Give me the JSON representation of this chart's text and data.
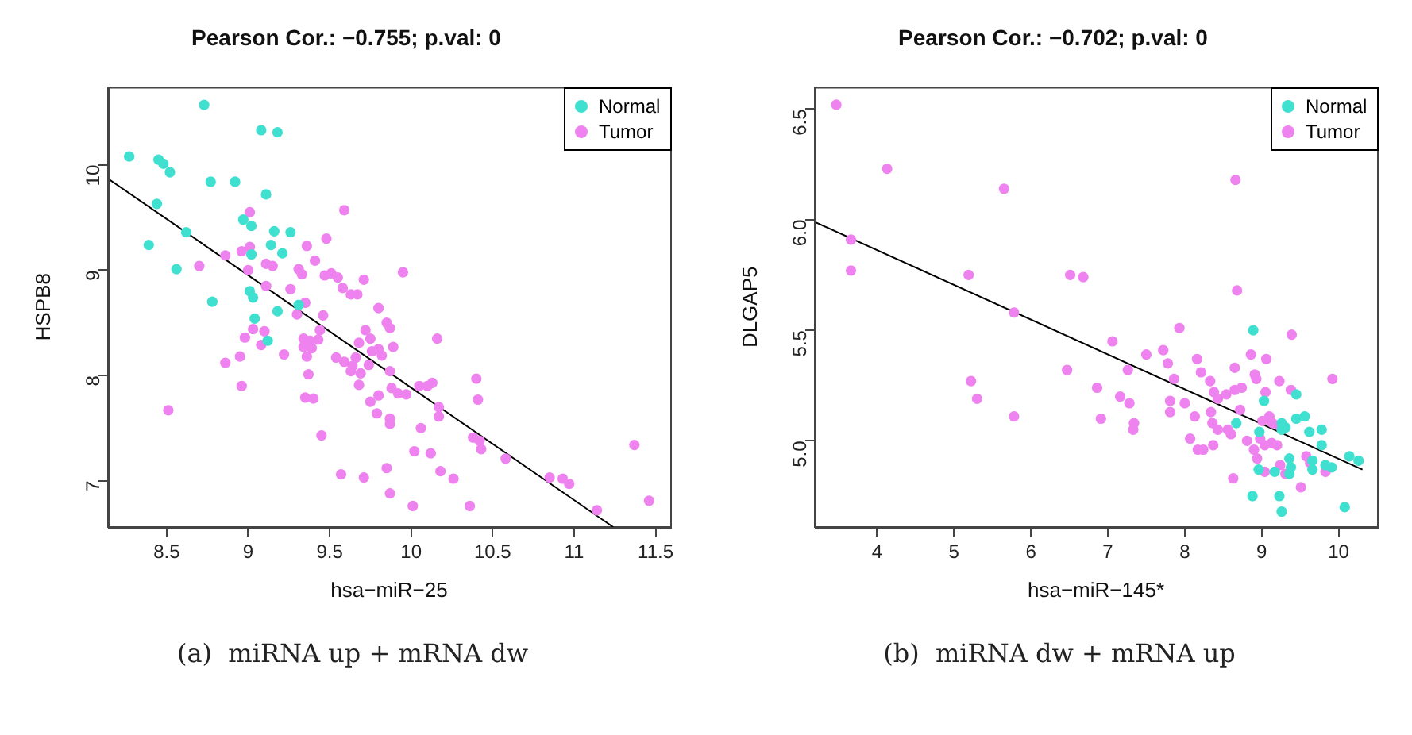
{
  "chart_data": [
    {
      "type": "scatter",
      "title": "Pearson Cor.: −0.755; p.val: 0",
      "xlabel": "hsa−miR−25",
      "ylabel": "HSPB8",
      "xlim": [
        8.14,
        11.59
      ],
      "xticks": [
        8.5,
        9,
        9.5,
        10,
        10.5,
        11,
        11.5
      ],
      "ylim": [
        6.56,
        10.74
      ],
      "yticks": [
        7,
        8,
        9,
        10
      ],
      "grid": false,
      "legend": "top right",
      "annotations": [
        "(a)  miRNA up + mRNA dw"
      ],
      "series": [
        {
          "name": "Normal",
          "color": "#40e0d0",
          "marker": "circle",
          "x": [
            8.27,
            8.45,
            8.48,
            8.52,
            8.73,
            9.08,
            9.18,
            8.77,
            8.92,
            9.11,
            8.44,
            8.39,
            8.62,
            8.56,
            8.97,
            9.02,
            9.16,
            9.26,
            9.14,
            9.21,
            9.02,
            8.78,
            9.01,
            9.03,
            9.31,
            9.18,
            9.04,
            9.12
          ],
          "values": [
            10.08,
            10.05,
            10.01,
            9.93,
            10.57,
            10.33,
            10.31,
            9.84,
            9.84,
            9.72,
            9.63,
            9.24,
            9.36,
            9.01,
            9.48,
            9.42,
            9.37,
            9.36,
            9.24,
            9.16,
            9.15,
            8.7,
            8.8,
            8.74,
            8.67,
            8.61,
            8.54,
            8.33
          ]
        },
        {
          "name": "Tumor",
          "color": "#ee82ee",
          "marker": "circle",
          "x": [
            9.01,
            9.59,
            9.48,
            9.36,
            8.96,
            9.01,
            8.86,
            8.7,
            9.11,
            9.15,
            9.41,
            9.0,
            9.31,
            9.33,
            9.47,
            9.51,
            9.55,
            9.71,
            9.95,
            9.11,
            9.26,
            9.58,
            9.63,
            9.67,
            9.35,
            9.3,
            9.46,
            9.8,
            9.85,
            9.87,
            9.72,
            9.75,
            9.68,
            9.03,
            9.1,
            8.98,
            9.08,
            9.34,
            9.44,
            9.43,
            9.38,
            9.34,
            9.39,
            9.22,
            9.36,
            8.95,
            8.86,
            9.54,
            9.59,
            9.64,
            9.66,
            9.76,
            9.8,
            9.82,
            9.89,
            9.74,
            9.63,
            9.69,
            9.87,
            9.37,
            8.96,
            9.68,
            9.88,
            9.92,
            9.97,
            9.8,
            9.75,
            9.35,
            9.4,
            9.79,
            9.87,
            9.87,
            8.51,
            9.45,
            9.57,
            9.71,
            9.85,
            9.87,
            10.01,
            10.02,
            10.16,
            10.05,
            10.1,
            10.13,
            10.17,
            10.17,
            10.4,
            10.41,
            10.06,
            10.38,
            10.42,
            10.43,
            10.12,
            10.18,
            10.26,
            10.58,
            10.85,
            10.93,
            10.97,
            11.37,
            11.46,
            11.14,
            10.36
          ],
          "values": [
            9.55,
            9.57,
            9.3,
            9.23,
            9.18,
            9.22,
            9.14,
            9.04,
            9.06,
            9.04,
            9.09,
            9.0,
            9.01,
            8.96,
            8.95,
            8.97,
            8.93,
            8.91,
            8.98,
            8.85,
            8.82,
            8.83,
            8.77,
            8.77,
            8.69,
            8.58,
            8.57,
            8.64,
            8.5,
            8.45,
            8.43,
            8.35,
            8.31,
            8.44,
            8.42,
            8.36,
            8.29,
            8.35,
            8.43,
            8.34,
            8.33,
            8.27,
            8.26,
            8.2,
            8.18,
            8.18,
            8.12,
            8.17,
            8.13,
            8.09,
            8.17,
            8.23,
            8.25,
            8.19,
            8.27,
            8.1,
            8.04,
            8.02,
            8.04,
            8.01,
            7.9,
            7.91,
            7.88,
            7.83,
            7.82,
            7.81,
            7.75,
            7.79,
            7.78,
            7.64,
            7.59,
            7.54,
            7.67,
            7.43,
            7.06,
            7.03,
            7.12,
            6.88,
            6.76,
            7.28,
            8.35,
            7.9,
            7.9,
            7.93,
            7.7,
            7.61,
            7.97,
            7.77,
            7.5,
            7.41,
            7.38,
            7.3,
            7.26,
            7.09,
            7.02,
            7.21,
            7.03,
            7.02,
            6.97,
            7.34,
            6.81,
            6.72,
            6.76
          ]
        },
        {
          "type": "line",
          "color": "#000000",
          "x": [
            8.14,
            11.24
          ],
          "values": [
            9.87,
            6.56
          ]
        }
      ]
    },
    {
      "type": "scatter",
      "title": "Pearson Cor.: −0.702; p.val: 0",
      "xlabel": "hsa−miR−145*",
      "ylabel": "DLGAP5",
      "xlim": [
        3.19,
        10.5
      ],
      "xticks": [
        4,
        5,
        6,
        7,
        8,
        9,
        10
      ],
      "ylim": [
        4.61,
        6.6
      ],
      "yticks": [
        {
          "value": 5,
          "label": "5.0"
        },
        5.5,
        {
          "value": 6,
          "label": "6.0"
        },
        6.5
      ],
      "grid": false,
      "legend": "top right",
      "annotations": [
        "(b)  miRNA dw + mRNA up"
      ],
      "series": [
        {
          "name": "Normal",
          "color": "#40e0d0",
          "marker": "circle",
          "x": [
            8.89,
            9.03,
            9.45,
            8.67,
            8.97,
            9.26,
            9.31,
            9.45,
            9.56,
            9.26,
            9.78,
            9.62,
            9.78,
            10.14,
            10.26,
            9.36,
            9.38,
            9.36,
            9.66,
            9.66,
            9.83,
            9.91,
            8.96,
            9.17,
            8.88,
            9.23,
            9.26,
            10.08
          ],
          "values": [
            5.5,
            5.18,
            5.21,
            5.08,
            5.04,
            5.08,
            5.06,
            5.1,
            5.11,
            5.05,
            5.05,
            5.04,
            4.98,
            4.93,
            4.91,
            4.92,
            4.88,
            4.85,
            4.91,
            4.87,
            4.89,
            4.88,
            4.87,
            4.86,
            4.75,
            4.75,
            4.68,
            4.7
          ]
        },
        {
          "name": "Tumor",
          "color": "#ee82ee",
          "marker": "circle",
          "x": [
            3.47,
            4.13,
            3.66,
            3.66,
            5.65,
            5.19,
            5.78,
            5.22,
            5.3,
            5.78,
            6.47,
            6.51,
            6.68,
            8.66,
            8.68,
            7.93,
            9.39,
            7.06,
            7.5,
            7.72,
            7.78,
            8.16,
            8.86,
            9.06,
            7.26,
            7.86,
            8.21,
            8.65,
            8.91,
            8.93,
            9.92,
            8.33,
            6.86,
            9.23,
            8.74,
            8.65,
            8.54,
            8.43,
            8.38,
            9.38,
            9.05,
            7.16,
            7.28,
            7.81,
            8.0,
            7.81,
            8.72,
            8.34,
            8.13,
            6.91,
            7.34,
            7.33,
            8.36,
            8.43,
            8.6,
            8.56,
            9.1,
            9.01,
            9.14,
            9.22,
            8.81,
            8.98,
            9.04,
            9.13,
            9.2,
            8.07,
            8.17,
            8.24,
            8.37,
            8.9,
            8.94,
            9.04,
            9.24,
            8.63,
            9.51,
            9.31,
            9.58,
            9.83,
            9.63
          ],
          "values": [
            6.52,
            6.23,
            5.91,
            5.77,
            6.14,
            5.75,
            5.58,
            5.27,
            5.19,
            5.11,
            5.32,
            5.75,
            5.74,
            6.18,
            5.68,
            5.51,
            5.48,
            5.45,
            5.39,
            5.41,
            5.35,
            5.37,
            5.39,
            5.37,
            5.32,
            5.28,
            5.31,
            5.33,
            5.3,
            5.28,
            5.28,
            5.27,
            5.24,
            5.27,
            5.24,
            5.23,
            5.21,
            5.19,
            5.22,
            5.23,
            5.22,
            5.2,
            5.17,
            5.18,
            5.17,
            5.13,
            5.14,
            5.13,
            5.11,
            5.1,
            5.08,
            5.05,
            5.08,
            5.05,
            5.03,
            5.05,
            5.11,
            5.09,
            5.08,
            5.07,
            5.0,
            5.01,
            4.98,
            4.99,
            4.98,
            5.01,
            4.96,
            4.96,
            4.98,
            4.96,
            4.92,
            4.86,
            4.89,
            4.83,
            4.79,
            4.85,
            4.93,
            4.86,
            4.9
          ]
        },
        {
          "type": "line",
          "color": "#000000",
          "x": [
            3.19,
            10.31
          ],
          "values": [
            5.99,
            4.87
          ]
        }
      ]
    }
  ]
}
